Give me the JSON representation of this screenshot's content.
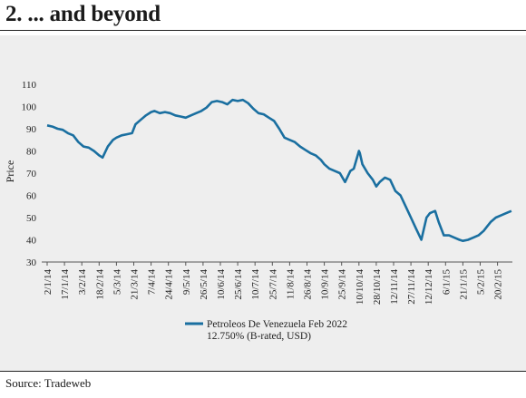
{
  "header": {
    "title": "2. ... and beyond"
  },
  "footer": {
    "source": "Source: Tradeweb"
  },
  "chart_data": {
    "type": "line",
    "ylabel": "Price",
    "ylim": [
      30,
      110
    ],
    "yticks": [
      30,
      40,
      50,
      60,
      70,
      80,
      90,
      100,
      110
    ],
    "grid": false,
    "legend_position": "bottom-center",
    "line_color": "#1a6fa0",
    "xticks": [
      "2/1/14",
      "17/1/14",
      "3/2/14",
      "18/2/14",
      "5/3/14",
      "21/3/14",
      "7/4/14",
      "24/4/14",
      "9/5/14",
      "26/5/14",
      "10/6/14",
      "25/6/14",
      "10/7/14",
      "25/7/14",
      "11/8/14",
      "26/8/14",
      "10/9/14",
      "25/9/14",
      "10/10/14",
      "28/10/14",
      "12/11/14",
      "27/11/14",
      "12/12/14",
      "6/1/15",
      "21/1/15",
      "5/2/15",
      "20/2/15"
    ],
    "series": [
      {
        "name": "Petroleos De Venezuela Feb 2022 12.750% (B-rated, USD)",
        "legend_lines": [
          "Petroleos De Venezuela Feb 2022",
          "12.750% (B-rated, USD)"
        ],
        "x_index": [
          0,
          0.3,
          0.6,
          0.9,
          1.2,
          1.5,
          1.8,
          2.1,
          2.4,
          2.7,
          3.0,
          3.2,
          3.5,
          3.8,
          4.0,
          4.3,
          4.6,
          4.9,
          5.1,
          5.4,
          5.7,
          6.0,
          6.2,
          6.5,
          6.8,
          7.1,
          7.4,
          7.7,
          8.0,
          8.3,
          8.6,
          8.9,
          9.2,
          9.5,
          9.8,
          10.1,
          10.4,
          10.7,
          11.0,
          11.3,
          11.6,
          11.9,
          12.2,
          12.5,
          12.8,
          13.1,
          13.4,
          13.7,
          14.0,
          14.3,
          14.6,
          14.9,
          15.2,
          15.5,
          15.8,
          16.0,
          16.3,
          16.6,
          16.9,
          17.2,
          17.5,
          17.7,
          18.0,
          18.05,
          18.2,
          18.5,
          18.8,
          19.0,
          19.2,
          19.5,
          19.8,
          20.1,
          20.4,
          20.7,
          21.0,
          21.3,
          21.6,
          21.9,
          22.1,
          22.4,
          22.6,
          22.9,
          23.2,
          23.5,
          23.8,
          24.0,
          24.3,
          24.6,
          24.9,
          25.2,
          25.4,
          25.6,
          25.9,
          26.2,
          26.5,
          26.8
        ],
        "values": [
          91.5,
          91,
          90,
          89.5,
          88,
          87,
          84,
          82,
          81.5,
          80,
          78,
          77,
          82,
          85,
          86,
          87,
          87.5,
          88,
          92,
          94,
          96,
          97.5,
          98,
          97,
          97.5,
          97,
          96,
          95.5,
          95,
          96,
          97,
          98,
          99.5,
          102,
          102.5,
          102,
          101,
          103,
          102.5,
          103,
          101.5,
          99,
          97,
          96.5,
          95,
          93.5,
          90,
          86,
          85,
          84,
          82,
          80.5,
          79,
          78,
          76,
          74,
          72,
          71,
          70,
          66,
          71,
          72,
          80,
          79,
          74,
          70,
          67,
          64,
          66,
          68,
          67,
          62,
          60,
          55,
          50,
          45,
          40,
          50,
          52,
          53,
          48,
          42,
          42,
          41,
          40,
          39.5,
          40,
          41,
          42,
          44,
          46,
          48,
          50,
          51,
          52,
          53
        ]
      }
    ]
  }
}
